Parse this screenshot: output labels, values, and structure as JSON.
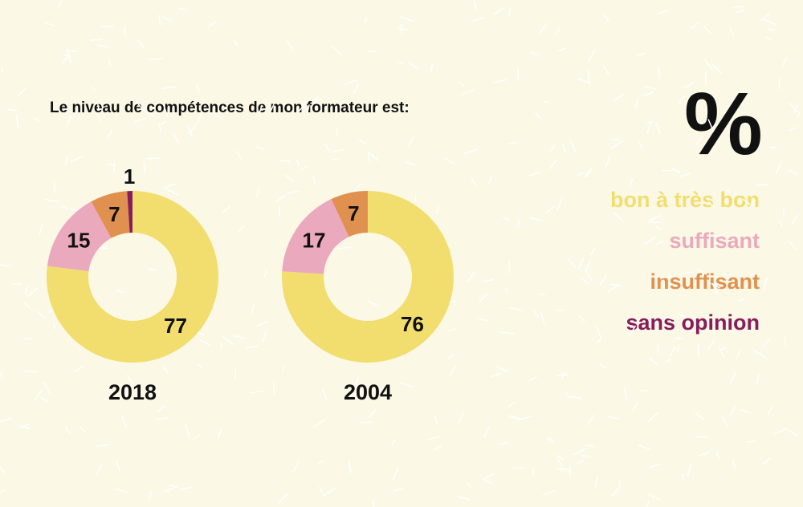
{
  "chart_data": {
    "type": "pie",
    "title": "Le niveau de compétences de mon formateur est:",
    "unit_label": "%",
    "legend": [
      {
        "label": "bon à très bon",
        "color": "#f2de6e"
      },
      {
        "label": "suffisant",
        "color": "#eba9bd"
      },
      {
        "label": "insuffisant",
        "color": "#e09150"
      },
      {
        "label": "sans opinion",
        "color": "#861d5c"
      }
    ],
    "charts": [
      {
        "year": "2018",
        "values": [
          77,
          15,
          7,
          1
        ]
      },
      {
        "year": "2004",
        "values": [
          76,
          17,
          7,
          0
        ]
      }
    ]
  }
}
